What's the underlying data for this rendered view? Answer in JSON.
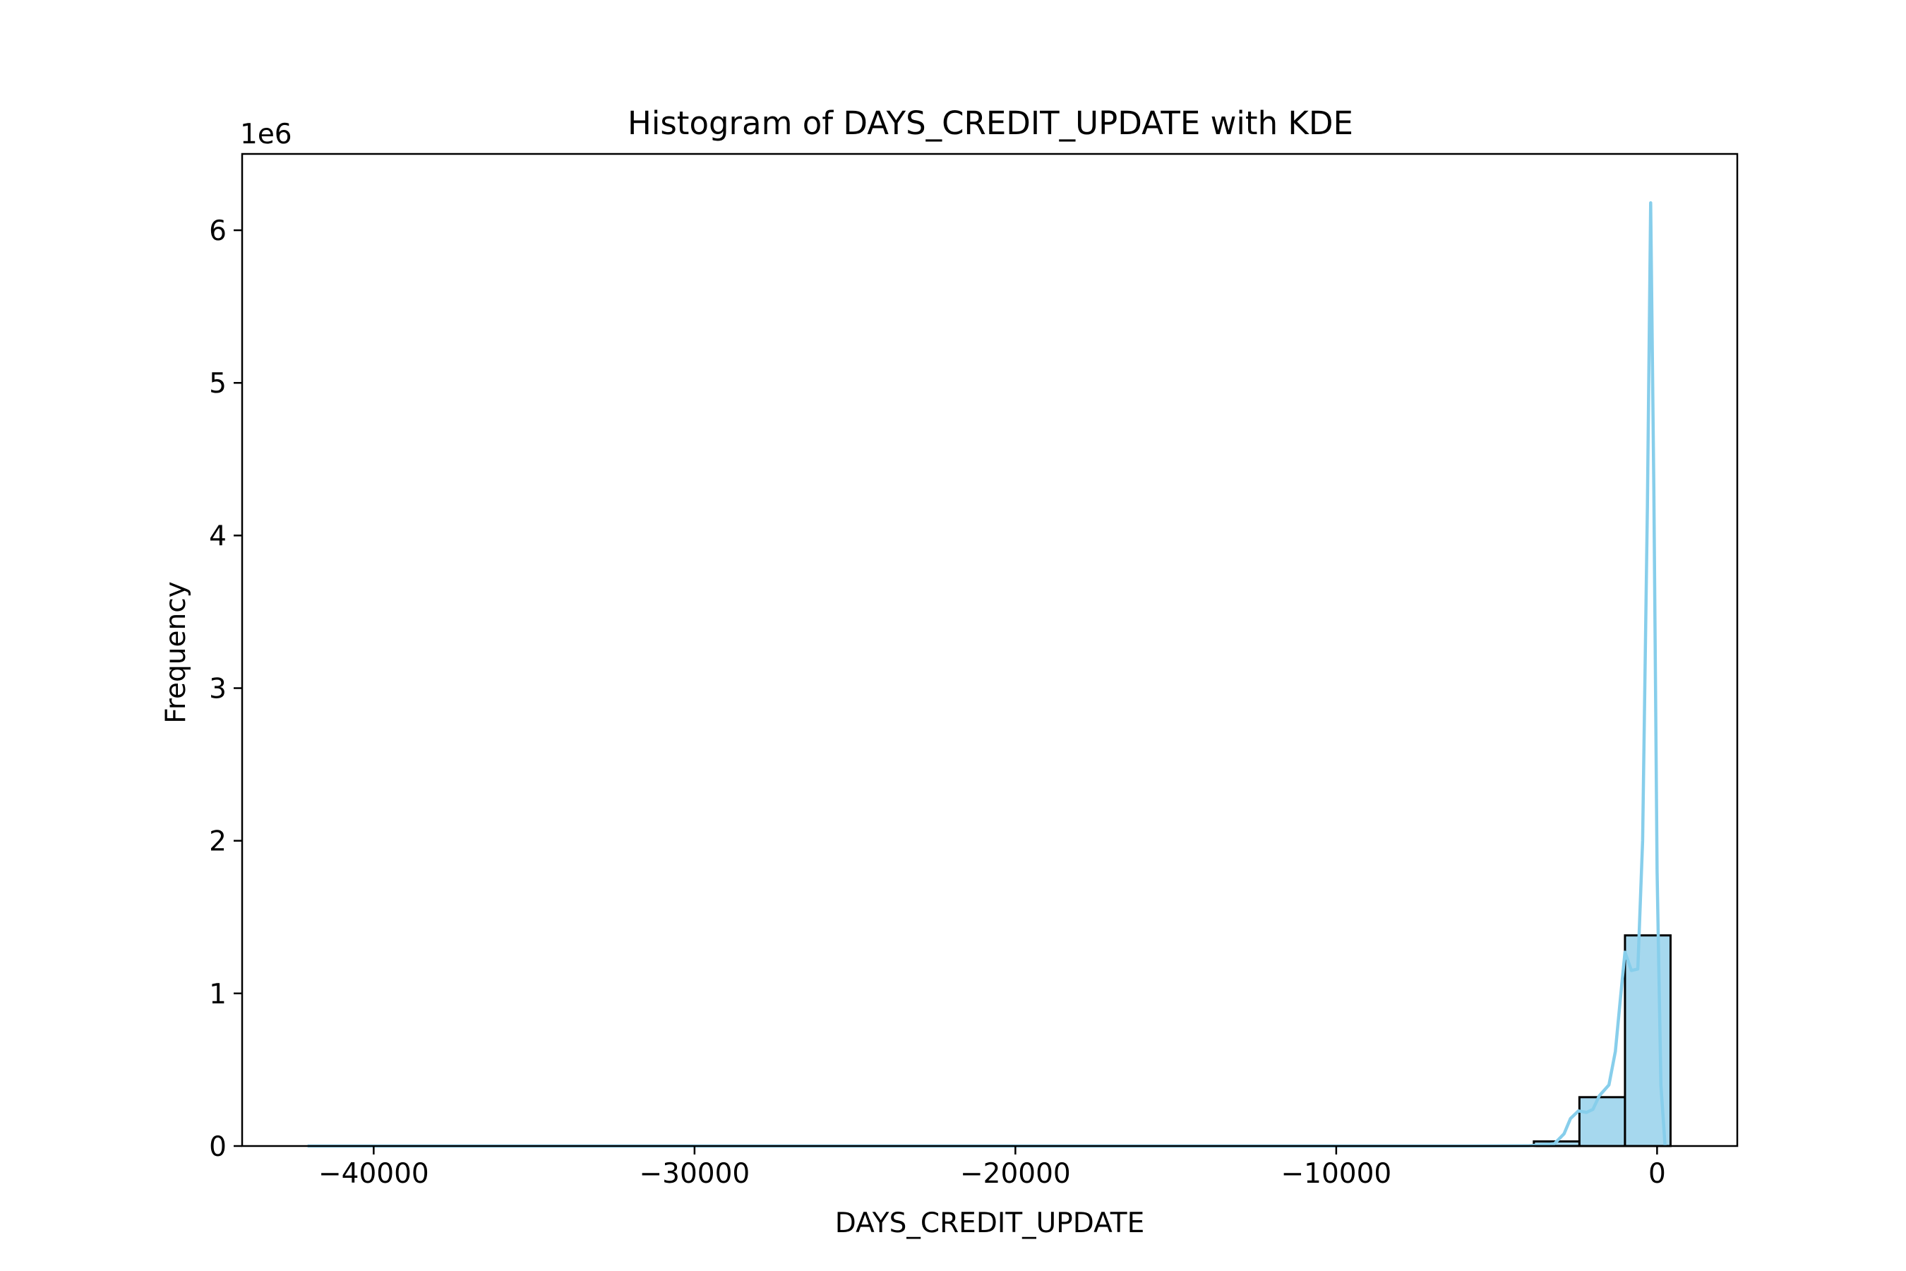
{
  "chart_data": {
    "type": "bar",
    "title": "Histogram of DAYS_CREDIT_UPDATE with KDE",
    "xlabel": "DAYS_CREDIT_UPDATE",
    "ylabel": "Frequency",
    "y_offset_label": "1e6",
    "y_multiplier": 1000000,
    "xlim": [
      -44100,
      2500
    ],
    "ylim": [
      0,
      6500000
    ],
    "grid": false,
    "legend": "none",
    "x_ticks": [
      {
        "value": -40000,
        "label": "−40000"
      },
      {
        "value": -30000,
        "label": "−30000"
      },
      {
        "value": -20000,
        "label": "−20000"
      },
      {
        "value": -10000,
        "label": "−10000"
      },
      {
        "value": 0,
        "label": "0"
      }
    ],
    "y_ticks": [
      {
        "value": 0,
        "label": "0"
      },
      {
        "value": 1000000,
        "label": "1"
      },
      {
        "value": 2000000,
        "label": "2"
      },
      {
        "value": 3000000,
        "label": "3"
      },
      {
        "value": 4000000,
        "label": "4"
      },
      {
        "value": 5000000,
        "label": "5"
      },
      {
        "value": 6000000,
        "label": "6"
      }
    ],
    "bins": [
      {
        "x0": -42060,
        "x1": -40640,
        "count": 0
      },
      {
        "x0": -40640,
        "x1": -39220,
        "count": 0
      },
      {
        "x0": -39220,
        "x1": -37800,
        "count": 0
      },
      {
        "x0": -37800,
        "x1": -36380,
        "count": 0
      },
      {
        "x0": -36380,
        "x1": -34960,
        "count": 0
      },
      {
        "x0": -34960,
        "x1": -33540,
        "count": 0
      },
      {
        "x0": -33540,
        "x1": -32120,
        "count": 0
      },
      {
        "x0": -32120,
        "x1": -30700,
        "count": 0
      },
      {
        "x0": -30700,
        "x1": -29280,
        "count": 0
      },
      {
        "x0": -29280,
        "x1": -27860,
        "count": 0
      },
      {
        "x0": -27860,
        "x1": -26440,
        "count": 0
      },
      {
        "x0": -26440,
        "x1": -25020,
        "count": 0
      },
      {
        "x0": -25020,
        "x1": -23600,
        "count": 0
      },
      {
        "x0": -23600,
        "x1": -22180,
        "count": 0
      },
      {
        "x0": -22180,
        "x1": -20760,
        "count": 0
      },
      {
        "x0": -20760,
        "x1": -19340,
        "count": 0
      },
      {
        "x0": -19340,
        "x1": -17920,
        "count": 0
      },
      {
        "x0": -17920,
        "x1": -16500,
        "count": 0
      },
      {
        "x0": -16500,
        "x1": -15080,
        "count": 0
      },
      {
        "x0": -15080,
        "x1": -13660,
        "count": 0
      },
      {
        "x0": -13660,
        "x1": -12240,
        "count": 0
      },
      {
        "x0": -12240,
        "x1": -10820,
        "count": 0
      },
      {
        "x0": -10820,
        "x1": -9400,
        "count": 0
      },
      {
        "x0": -9400,
        "x1": -7980,
        "count": 0
      },
      {
        "x0": -7980,
        "x1": -6560,
        "count": 0
      },
      {
        "x0": -6560,
        "x1": -5140,
        "count": 0
      },
      {
        "x0": -5140,
        "x1": -3840,
        "count": 0
      },
      {
        "x0": -3840,
        "x1": -2420,
        "count": 30000
      },
      {
        "x0": -2420,
        "x1": -1000,
        "count": 320000
      },
      {
        "x0": -1000,
        "x1": 420,
        "count": 1380000
      }
    ],
    "kde": {
      "x": [
        -42060,
        -36000,
        -30000,
        -24000,
        -18000,
        -12000,
        -6000,
        -4000,
        -3200,
        -2900,
        -2700,
        -2450,
        -2200,
        -2000,
        -1800,
        -1500,
        -1300,
        -1150,
        -1000,
        -800,
        -600,
        -450,
        -300,
        -200,
        -100,
        0,
        120,
        250
      ],
      "y": [
        0,
        0,
        0,
        0,
        0,
        0,
        0,
        2000,
        15000,
        80000,
        180000,
        230000,
        220000,
        240000,
        330000,
        400000,
        620000,
        950000,
        1270000,
        1150000,
        1160000,
        2000000,
        4200000,
        6180000,
        4300000,
        1800000,
        400000,
        0
      ]
    },
    "colors": {
      "bar_fill": "#a6d8ee",
      "bar_edge": "#000000",
      "kde_line": "#87ceeb"
    }
  }
}
